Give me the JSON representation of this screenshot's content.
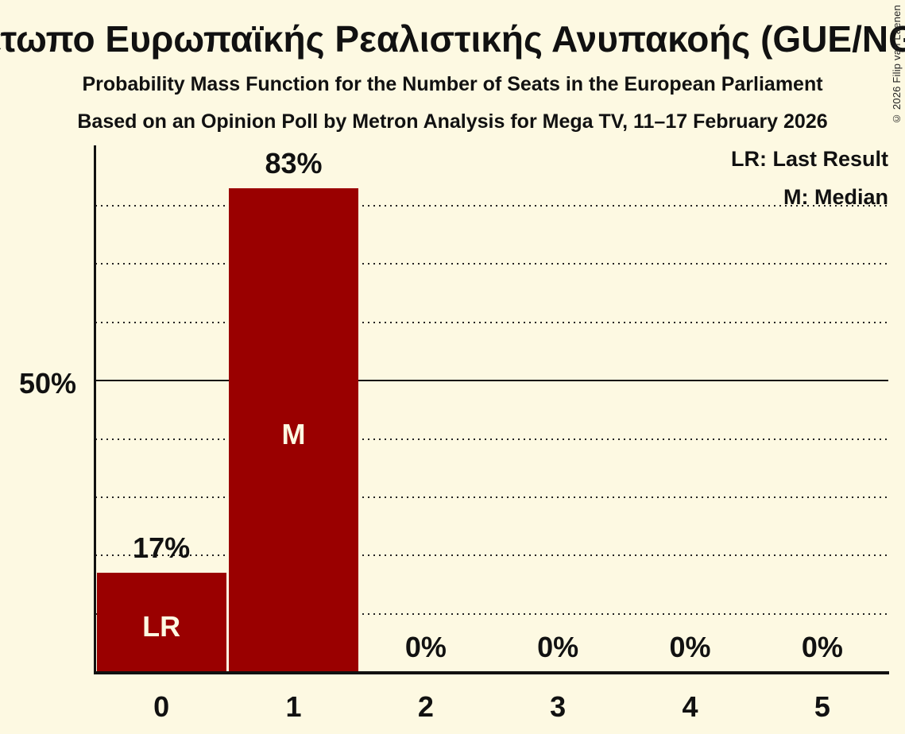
{
  "title": "Μέτωπο Ευρωπαϊκής Ρεαλιστικής Ανυπακοής (GUE/NGL)",
  "subtitle_line1": "Probability Mass Function for the Number of Seats in the European Parliament",
  "subtitle_line2": "Based on an Opinion Poll by Metron Analysis for Mega TV, 11–17 February 2026",
  "legend": {
    "last_result": "LR: Last Result",
    "median": "M: Median"
  },
  "copyright": "© 2026 Filip van Laenen",
  "colors": {
    "background": "#FDF9E2",
    "bar": "#9A0000",
    "text": "#111111",
    "bar_label": "#FDF9E2"
  },
  "y_axis": {
    "tick_label": "50%",
    "tick_pct": 50
  },
  "chart_data": {
    "type": "bar",
    "title": "Μέτωπο Ευρωπαϊκής Ρεαλιστικής Ανυπακοής (GUE/NGL)",
    "subtitle": "Probability Mass Function for the Number of Seats in the European Parliament",
    "categories": [
      "0",
      "1",
      "2",
      "3",
      "4",
      "5"
    ],
    "values": [
      17,
      83,
      0,
      0,
      0,
      0
    ],
    "value_labels": [
      "17%",
      "83%",
      "0%",
      "0%",
      "0%",
      "0%"
    ],
    "bar_annotations": [
      "LR",
      "M",
      "",
      "",
      "",
      ""
    ],
    "xlabel": "",
    "ylabel": "",
    "ylim": [
      0,
      90.5
    ],
    "y_tick_labels": [
      "50%"
    ],
    "gridlines_pct": [
      10,
      20,
      30,
      40,
      50,
      60,
      70,
      80
    ],
    "solid_gridline_pct": 50,
    "grid": "horizontal dotted lines every 10%, solid line at 50%",
    "legend_position": "top-right",
    "legend_entries": [
      "LR: Last Result",
      "M: Median"
    ]
  }
}
